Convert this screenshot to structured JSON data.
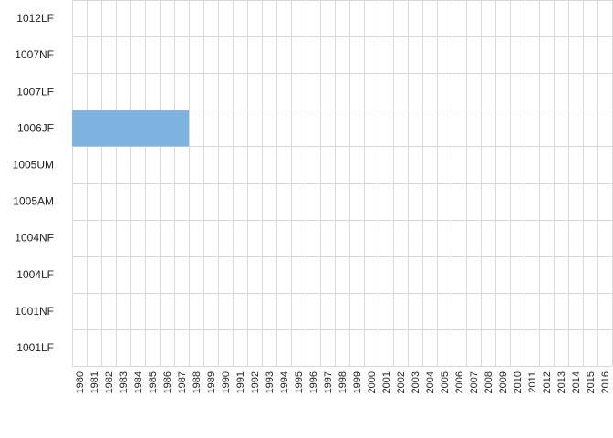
{
  "chart_data": {
    "type": "heatmap",
    "title": "",
    "xlabel": "",
    "ylabel": "",
    "x": [
      "1980",
      "1981",
      "1982",
      "1983",
      "1984",
      "1985",
      "1986",
      "1987",
      "1988",
      "1989",
      "1990",
      "1991",
      "1992",
      "1993",
      "1994",
      "1995",
      "1996",
      "1997",
      "1998",
      "1999",
      "2000",
      "2001",
      "2002",
      "2003",
      "2004",
      "2005",
      "2006",
      "2007",
      "2008",
      "2009",
      "2010",
      "2011",
      "2012",
      "2013",
      "2014",
      "2015",
      "2016"
    ],
    "y": [
      "1012LF",
      "1007NF",
      "1007LF",
      "1006JF",
      "1005UM",
      "1005AM",
      "1004NF",
      "1004LF",
      "1001NF",
      "1001LF"
    ],
    "filled_cells": [
      {
        "y": "1006JF",
        "x": "1980"
      },
      {
        "y": "1006JF",
        "x": "1981"
      },
      {
        "y": "1006JF",
        "x": "1982"
      },
      {
        "y": "1006JF",
        "x": "1983"
      },
      {
        "y": "1006JF",
        "x": "1984"
      },
      {
        "y": "1006JF",
        "x": "1985"
      },
      {
        "y": "1006JF",
        "x": "1986"
      },
      {
        "y": "1006JF",
        "x": "1987"
      }
    ],
    "fill_color": "#7eb3e0",
    "grid_color": "#d9d9d9",
    "grid": true,
    "legend": "none"
  }
}
